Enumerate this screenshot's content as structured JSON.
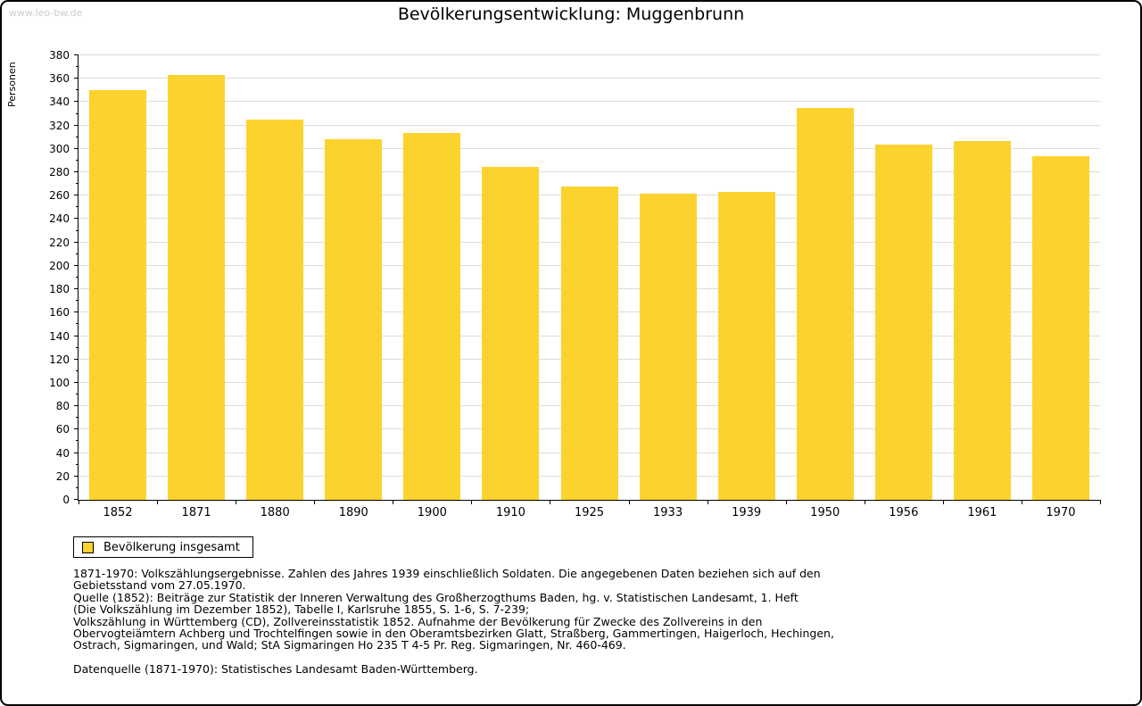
{
  "watermark": "www.leo-bw.de",
  "chart_data": {
    "type": "bar",
    "title": "Bevölkerungsentwicklung: Muggenbrunn",
    "ylabel": "Personen",
    "xlabel": "",
    "categories": [
      "1852",
      "1871",
      "1880",
      "1890",
      "1900",
      "1910",
      "1925",
      "1933",
      "1939",
      "1950",
      "1956",
      "1961",
      "1970"
    ],
    "values": [
      350,
      363,
      325,
      308,
      314,
      285,
      268,
      262,
      263,
      335,
      304,
      307,
      294
    ],
    "ylim": [
      0,
      380
    ],
    "ytick_step": 20,
    "ytick_minor_step": 10,
    "grid": "horizontal",
    "legend": [
      "Bevölkerung insgesamt"
    ],
    "legend_position": "bottom-left",
    "colors": {
      "bar": "#FCD32E",
      "grid": "#DCDCDC",
      "axis": "#000000"
    }
  },
  "notes": {
    "lines": [
      "1871-1970: Volkszählungsergebnisse. Zahlen des Jahres 1939 einschließlich Soldaten. Die angegebenen Daten beziehen sich auf den",
      "Gebietsstand vom 27.05.1970.",
      "Quelle (1852): Beiträge zur Statistik der Inneren Verwaltung des Großherzogthums Baden, hg. v. Statistischen Landesamt, 1. Heft",
      "(Die Volkszählung im Dezember 1852), Tabelle I, Karlsruhe 1855, S. 1-6, S. 7-239;",
      "Volkszählung in Württemberg (CD), Zollvereinsstatistik 1852. Aufnahme der Bevölkerung für Zwecke des Zollvereins in den",
      "Obervogteiämtern Achberg und Trochtelfingen sowie in den Oberamtsbezirken Glatt, Straßberg, Gammertingen, Haigerloch, Hechingen,",
      "Ostrach, Sigmaringen, und Wald; StA Sigmaringen Ho 235 T 4-5 Pr. Reg. Sigmaringen, Nr. 460-469."
    ],
    "datasource": "Datenquelle (1871-1970): Statistisches Landesamt Baden-Württemberg."
  }
}
